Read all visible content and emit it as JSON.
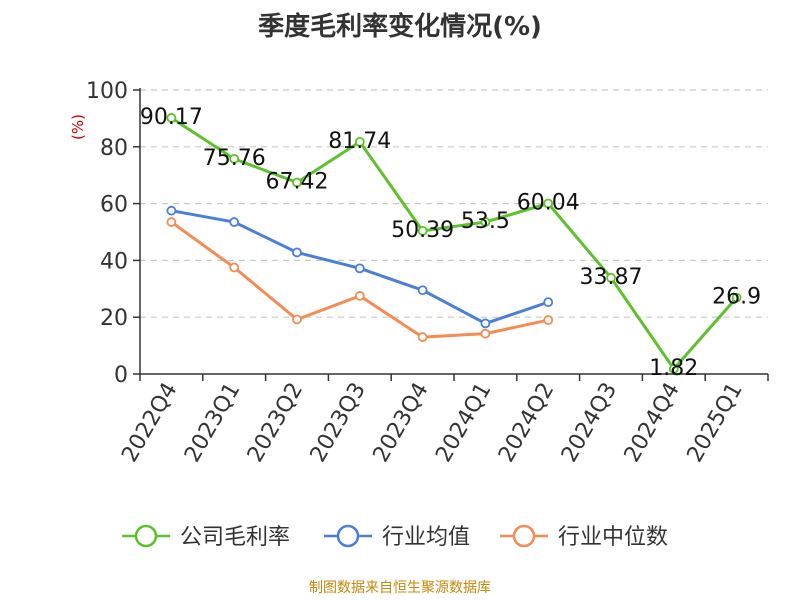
{
  "title": "季度毛利率变化情况(%)",
  "source": "制图数据来自恒生聚源数据库",
  "chart_data": {
    "type": "line",
    "title": "季度毛利率变化情况(%)",
    "ylabel": "(%)",
    "ylim": [
      0,
      100
    ],
    "yticks": [
      0,
      20,
      40,
      60,
      80,
      100
    ],
    "grid": true,
    "legend_position": "bottom",
    "categories": [
      "2022Q4",
      "2023Q1",
      "2023Q2",
      "2023Q3",
      "2023Q4",
      "2024Q1",
      "2024Q2",
      "2024Q3",
      "2024Q4",
      "2025Q1"
    ],
    "series": [
      {
        "name": "公司毛利率",
        "color": "#5cc12a",
        "values": [
          90.17,
          75.76,
          67.42,
          81.74,
          50.39,
          53.5,
          60.04,
          33.87,
          1.82,
          26.9
        ],
        "labels": [
          "90.17",
          "75.76",
          "67.42",
          "81.74",
          "50.39",
          "53.5",
          "60.04",
          "33.87",
          "1.82",
          "26.9"
        ]
      },
      {
        "name": "行业均值",
        "color": "#4a7fd9",
        "values": [
          57.5,
          53.5,
          42.8,
          37.2,
          29.5,
          17.8,
          25.3,
          null,
          null,
          null
        ]
      },
      {
        "name": "行业中位数",
        "color": "#f58b52",
        "values": [
          53.5,
          37.5,
          19.2,
          27.5,
          13.0,
          14.2,
          19.0,
          null,
          null,
          null
        ]
      }
    ]
  }
}
